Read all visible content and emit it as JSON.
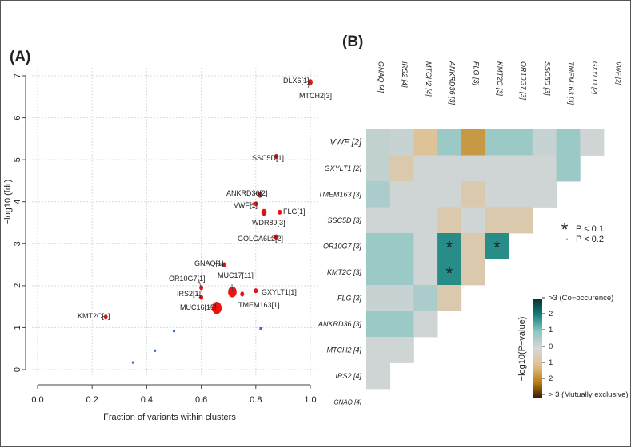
{
  "chart_data": [
    {
      "type": "scatter",
      "panel_label": "(A)",
      "xlabel": "Fraction of variants within clusters",
      "ylabel": "−log10 (fdr)",
      "xlim": [
        0.0,
        1.0
      ],
      "ylim": [
        0,
        7
      ],
      "x_ticks": [
        "0.0",
        "0.2",
        "0.4",
        "0.6",
        "0.8",
        "1.0"
      ],
      "y_ticks": [
        "0",
        "1",
        "2",
        "3",
        "4",
        "5",
        "6",
        "7"
      ],
      "grid": true,
      "points": [
        {
          "x": 1.0,
          "y": 6.85,
          "size": 2,
          "color": "red"
        },
        {
          "x": 0.875,
          "y": 5.08,
          "size": 1,
          "color": "red"
        },
        {
          "x": 0.815,
          "y": 4.17,
          "size": 2,
          "color": "red"
        },
        {
          "x": 0.8,
          "y": 3.95,
          "size": 1,
          "color": "red"
        },
        {
          "x": 0.888,
          "y": 3.75,
          "size": 1,
          "color": "red"
        },
        {
          "x": 0.83,
          "y": 3.75,
          "size": 3,
          "color": "red"
        },
        {
          "x": 0.875,
          "y": 3.15,
          "size": 2,
          "color": "red"
        },
        {
          "x": 0.684,
          "y": 2.5,
          "size": 1,
          "color": "red"
        },
        {
          "x": 0.714,
          "y": 1.85,
          "size": 11,
          "color": "red"
        },
        {
          "x": 0.6,
          "y": 1.95,
          "size": 1,
          "color": "red"
        },
        {
          "x": 0.6,
          "y": 1.72,
          "size": 1,
          "color": "red"
        },
        {
          "x": 0.8,
          "y": 1.88,
          "size": 1,
          "color": "red"
        },
        {
          "x": 0.75,
          "y": 1.8,
          "size": 1,
          "color": "red"
        },
        {
          "x": 0.657,
          "y": 1.47,
          "size": 15,
          "color": "red"
        },
        {
          "x": 0.25,
          "y": 1.25,
          "size": 1,
          "color": "red"
        },
        {
          "x": 0.5,
          "y": 0.92,
          "size": 1,
          "color": "blue"
        },
        {
          "x": 0.818,
          "y": 0.98,
          "size": 1,
          "color": "blue"
        },
        {
          "x": 0.43,
          "y": 0.45,
          "size": 1,
          "color": "blue"
        },
        {
          "x": 0.35,
          "y": 0.17,
          "size": 1,
          "color": "blue"
        }
      ],
      "labels": [
        {
          "text": "DLX6[1]",
          "x": 1.0,
          "y": 6.85
        },
        {
          "text": "MTCH2[3]",
          "x": 1.0,
          "y": 6.85
        },
        {
          "text": "SSC5D[1]",
          "x": 0.875,
          "y": 5.08
        },
        {
          "text": "ANKRD36[2]",
          "x": 0.815,
          "y": 4.17
        },
        {
          "text": "VWF[1]",
          "x": 0.8,
          "y": 3.95
        },
        {
          "text": "FLG[1]",
          "x": 0.888,
          "y": 3.75
        },
        {
          "text": "WDR89[3]",
          "x": 0.83,
          "y": 3.75
        },
        {
          "text": "GOLGA6L2[2]",
          "x": 0.875,
          "y": 3.15
        },
        {
          "text": "GNAQ[1]",
          "x": 0.684,
          "y": 2.5
        },
        {
          "text": "MUC17[11]",
          "x": 0.714,
          "y": 1.85
        },
        {
          "text": "OR10G7[1]",
          "x": 0.6,
          "y": 1.95
        },
        {
          "text": "IRS2[1]",
          "x": 0.6,
          "y": 1.72
        },
        {
          "text": "GXYLT1[1]",
          "x": 0.8,
          "y": 1.88
        },
        {
          "text": "TMEM163[1]",
          "x": 0.75,
          "y": 1.8
        },
        {
          "text": "MUC16[15]",
          "x": 0.657,
          "y": 1.47
        },
        {
          "text": "KMT2C[1]",
          "x": 0.25,
          "y": 1.25
        }
      ]
    },
    {
      "type": "heatmap",
      "panel_label": "(B)",
      "columns": [
        "GNAQ [4]",
        "IRS2 [4]",
        "MTCH2 [4]",
        "ANKRD36 [3]",
        "FLG [3]",
        "KMT2C [3]",
        "OR10G7 [3]",
        "SSC5D [3]",
        "TMEM163 [3]",
        "GXYLT1 [2]",
        "VWF [2]"
      ],
      "rows": [
        "VWF [2]",
        "GXYLT1 [2]",
        "TMEM163 [3]",
        "SSC5D [3]",
        "OR10G7 [3]",
        "KMT2C [3]",
        "FLG [3]",
        "ANKRD36 [3]",
        "MTCH2 [4]",
        "IRS2 [4]",
        "GNAQ [4]"
      ],
      "value_note": "signed −log10(P-value): positive = co-occurrence, negative = mutually exclusive",
      "cells": [
        [
          0.3,
          0.2,
          -0.9,
          0.8,
          -1.6,
          0.8,
          0.8,
          0.2,
          0.8,
          0.1
        ],
        [
          0.3,
          -0.6,
          0.1,
          0.1,
          0.1,
          0.1,
          0.1,
          0.1,
          0.8
        ],
        [
          0.6,
          0.1,
          0.1,
          0.1,
          -0.6,
          0.1,
          0.1,
          0.1
        ],
        [
          0.1,
          0.1,
          0.1,
          -0.6,
          0.1,
          -0.6,
          -0.6
        ],
        [
          0.8,
          0.8,
          0.1,
          1.8,
          -0.6,
          1.8
        ],
        [
          0.8,
          0.8,
          0.1,
          1.8,
          -0.6
        ],
        [
          0.2,
          0.2,
          0.6,
          -0.6
        ],
        [
          0.8,
          0.8,
          0.1
        ],
        [
          0.1,
          0.1
        ],
        [
          0.1
        ]
      ],
      "markers": [
        {
          "row": "OR10G7 [3]",
          "col": "ANKRD36 [3]",
          "mark": "*"
        },
        {
          "row": "OR10G7 [3]",
          "col": "KMT2C [3]",
          "mark": "*"
        },
        {
          "row": "KMT2C [3]",
          "col": "ANKRD36 [3]",
          "mark": "*"
        }
      ],
      "significance_legend": [
        {
          "mark": "*",
          "text": "P < 0.1"
        },
        {
          "mark": "·",
          "text": "P < 0.2"
        }
      ],
      "colorbar": {
        "title": "−log10(P−value)",
        "ticks": [
          ">3 (Co−occurence)",
          "2",
          "1",
          "0",
          "1",
          "2",
          "> 3 (Mutually exclusive)"
        ],
        "colors": {
          "strong_co": "#0b2f2c",
          "co_2": "#0f7f79",
          "co_1": "#8cc6c2",
          "zero": "#d6d6d6",
          "ex_1": "#dfc191",
          "ex_2": "#b97f10",
          "strong_ex": "#3a1505"
        }
      }
    }
  ]
}
